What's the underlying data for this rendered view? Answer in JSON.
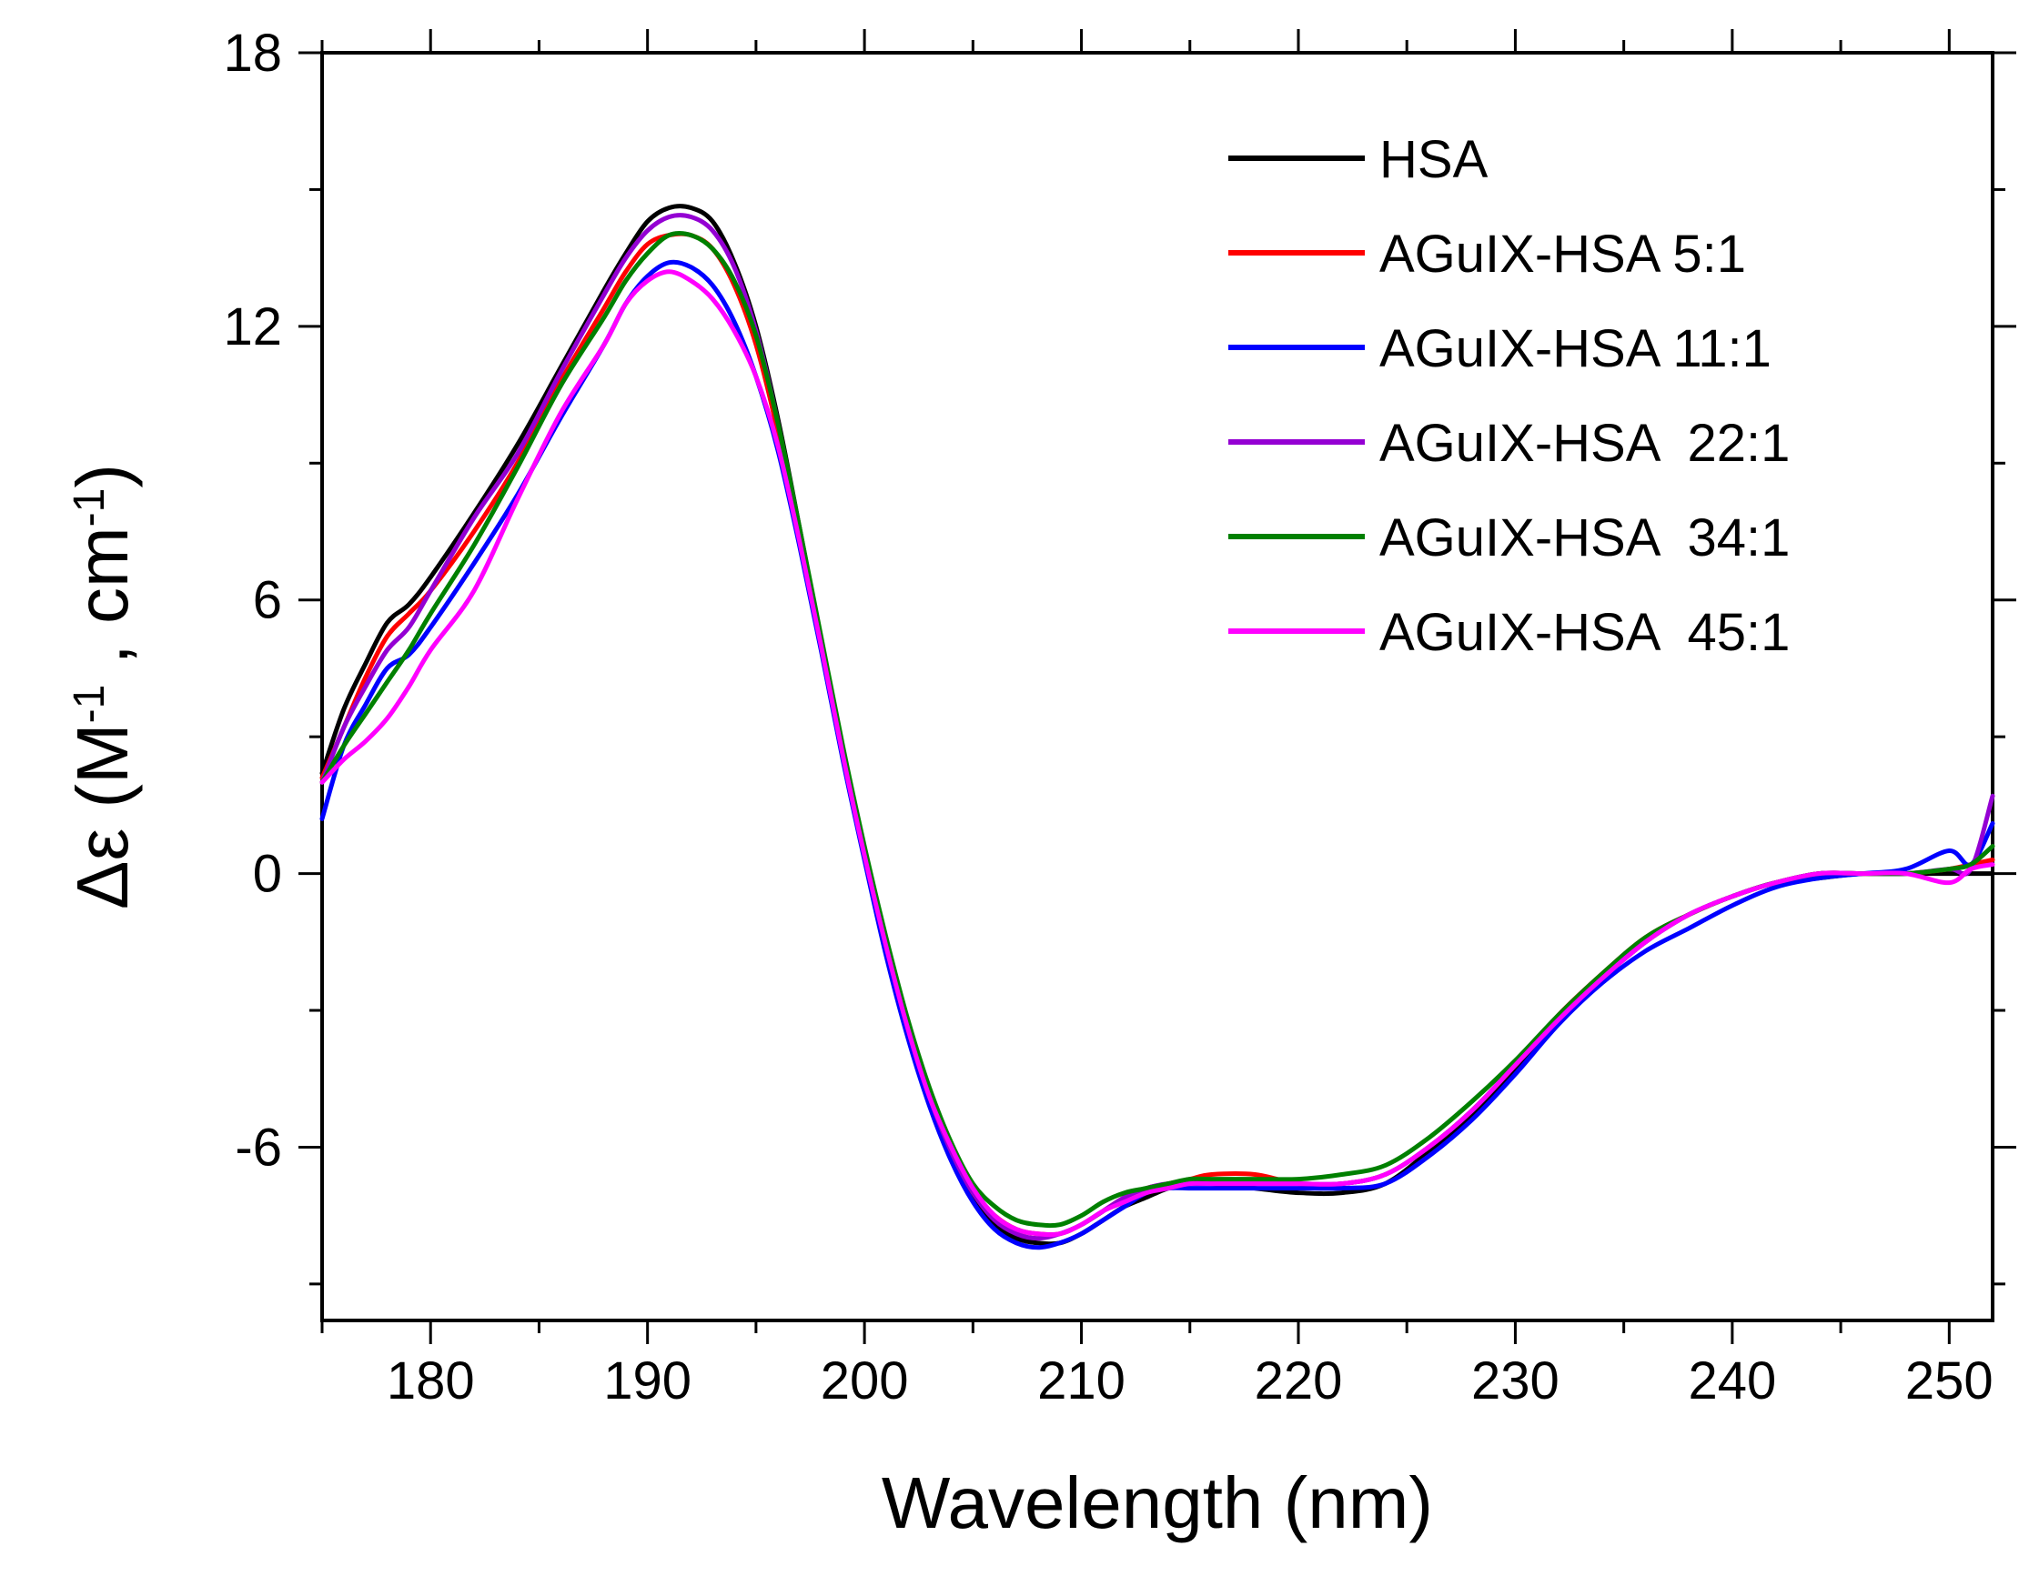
{
  "chart_data": {
    "type": "line",
    "title": "",
    "xlabel": "Wavelength (nm)",
    "ylabel": {
      "prefix": "Δε (M",
      "sup1": "-1",
      "mid": " , cm",
      "sup2": "-1",
      "suffix": ")"
    },
    "xlim": [
      175,
      252
    ],
    "ylim": [
      -9.8,
      18
    ],
    "xticks": [
      180,
      190,
      200,
      210,
      220,
      230,
      240,
      250
    ],
    "yticks": [
      -6,
      0,
      6,
      12,
      18
    ],
    "grid": false,
    "legend_position": "top-right",
    "series": [
      {
        "name": "HSA",
        "color": "#000000",
        "x": [
          175,
          176,
          177,
          178,
          179,
          180,
          182,
          184,
          186,
          188,
          189,
          190,
          191,
          192,
          193,
          194,
          195,
          196,
          197,
          198,
          199,
          200,
          201,
          202,
          203,
          204,
          205,
          206,
          207,
          208,
          209,
          210,
          211,
          212,
          213,
          214,
          215,
          216,
          218,
          220,
          222,
          224,
          226,
          228,
          230,
          232,
          234,
          236,
          238,
          240,
          242,
          244,
          246,
          248,
          250,
          251,
          252
        ],
        "y": [
          2.2,
          3.6,
          4.6,
          5.5,
          5.9,
          6.5,
          7.9,
          9.4,
          11.1,
          12.8,
          13.6,
          14.3,
          14.6,
          14.6,
          14.3,
          13.4,
          12.0,
          10.0,
          7.6,
          5.1,
          2.6,
          0.4,
          -1.7,
          -3.5,
          -5.0,
          -6.2,
          -7.1,
          -7.7,
          -8.0,
          -8.1,
          -8.1,
          -7.9,
          -7.6,
          -7.3,
          -7.1,
          -6.9,
          -6.8,
          -6.8,
          -6.9,
          -7.0,
          -7.0,
          -6.8,
          -6.1,
          -5.3,
          -4.3,
          -3.2,
          -2.3,
          -1.5,
          -0.9,
          -0.5,
          -0.2,
          -0.1,
          0.0,
          0.0,
          0.0,
          0.0,
          0.0
        ]
      },
      {
        "name": "AGuIX-HSA 5:1",
        "color": "#ff0000",
        "x": [
          175,
          176,
          177,
          178,
          179,
          180,
          182,
          184,
          186,
          188,
          189,
          190,
          191,
          192,
          193,
          194,
          195,
          196,
          197,
          198,
          199,
          200,
          201,
          202,
          203,
          204,
          205,
          206,
          207,
          208,
          209,
          210,
          211,
          212,
          213,
          214,
          215,
          216,
          218,
          220,
          222,
          224,
          226,
          228,
          230,
          232,
          234,
          236,
          238,
          240,
          242,
          244,
          246,
          248,
          250,
          251,
          252
        ],
        "y": [
          2.1,
          3.2,
          4.3,
          5.2,
          5.7,
          6.2,
          7.5,
          9.0,
          10.8,
          12.4,
          13.2,
          13.8,
          14.0,
          14.0,
          13.7,
          12.9,
          11.6,
          9.7,
          7.4,
          5.0,
          2.6,
          0.4,
          -1.6,
          -3.4,
          -4.9,
          -6.1,
          -7.0,
          -7.5,
          -7.8,
          -7.9,
          -7.9,
          -7.7,
          -7.4,
          -7.1,
          -6.9,
          -6.8,
          -6.7,
          -6.6,
          -6.6,
          -6.8,
          -6.8,
          -6.6,
          -6.0,
          -5.2,
          -4.2,
          -3.1,
          -2.2,
          -1.4,
          -0.9,
          -0.5,
          -0.2,
          0.0,
          0.0,
          0.0,
          0.1,
          0.2,
          0.3
        ]
      },
      {
        "name": "AGuIX-HSA 11:1",
        "color": "#0000ff",
        "x": [
          175,
          176,
          177,
          178,
          179,
          180,
          182,
          184,
          186,
          188,
          189,
          190,
          191,
          192,
          193,
          194,
          195,
          196,
          197,
          198,
          199,
          200,
          201,
          202,
          203,
          204,
          205,
          206,
          207,
          208,
          209,
          210,
          211,
          212,
          213,
          214,
          215,
          216,
          218,
          220,
          222,
          224,
          226,
          228,
          230,
          232,
          234,
          236,
          238,
          240,
          242,
          244,
          246,
          248,
          250,
          251,
          252
        ],
        "y": [
          1.2,
          2.8,
          3.7,
          4.5,
          4.8,
          5.4,
          6.8,
          8.3,
          10.0,
          11.6,
          12.5,
          13.1,
          13.4,
          13.3,
          12.9,
          12.1,
          10.9,
          9.3,
          7.2,
          4.9,
          2.5,
          0.3,
          -1.8,
          -3.6,
          -5.1,
          -6.3,
          -7.2,
          -7.8,
          -8.1,
          -8.2,
          -8.1,
          -7.9,
          -7.6,
          -7.3,
          -7.0,
          -6.9,
          -6.9,
          -6.9,
          -6.9,
          -6.9,
          -6.9,
          -6.8,
          -6.2,
          -5.4,
          -4.4,
          -3.3,
          -2.4,
          -1.7,
          -1.2,
          -0.7,
          -0.3,
          -0.1,
          0.0,
          0.1,
          0.5,
          0.2,
          1.1
        ]
      },
      {
        "name": "AGuIX-HSA  22:1",
        "color": "#9400d3",
        "x": [
          175,
          176,
          177,
          178,
          179,
          180,
          182,
          184,
          186,
          188,
          189,
          190,
          191,
          192,
          193,
          194,
          195,
          196,
          197,
          198,
          199,
          200,
          201,
          202,
          203,
          204,
          205,
          206,
          207,
          208,
          209,
          210,
          211,
          212,
          213,
          214,
          215,
          216,
          218,
          220,
          222,
          224,
          226,
          228,
          230,
          232,
          234,
          236,
          238,
          240,
          242,
          244,
          246,
          248,
          250,
          251,
          252
        ],
        "y": [
          2.0,
          3.2,
          4.1,
          4.9,
          5.4,
          6.2,
          7.8,
          9.2,
          11.0,
          12.7,
          13.5,
          14.1,
          14.4,
          14.4,
          14.1,
          13.3,
          11.9,
          9.9,
          7.5,
          5.0,
          2.6,
          0.4,
          -1.6,
          -3.4,
          -4.9,
          -6.1,
          -7.0,
          -7.6,
          -7.9,
          -8.0,
          -7.9,
          -7.7,
          -7.4,
          -7.1,
          -6.9,
          -6.8,
          -6.8,
          -6.8,
          -6.8,
          -6.8,
          -6.8,
          -6.6,
          -6.0,
          -5.2,
          -4.2,
          -3.2,
          -2.3,
          -1.5,
          -0.9,
          -0.5,
          -0.2,
          0.0,
          0.0,
          0.0,
          0.1,
          0.1,
          1.7
        ]
      },
      {
        "name": "AGuIX-HSA  34:1",
        "color": "#008000",
        "x": [
          175,
          176,
          177,
          178,
          179,
          180,
          182,
          184,
          186,
          188,
          189,
          190,
          191,
          192,
          193,
          194,
          195,
          196,
          197,
          198,
          199,
          200,
          201,
          202,
          203,
          204,
          205,
          206,
          207,
          208,
          209,
          210,
          211,
          212,
          213,
          214,
          215,
          216,
          218,
          220,
          222,
          224,
          226,
          228,
          230,
          232,
          234,
          236,
          238,
          240,
          242,
          244,
          246,
          248,
          250,
          251,
          252
        ],
        "y": [
          2.0,
          2.8,
          3.5,
          4.2,
          4.9,
          5.7,
          7.2,
          8.9,
          10.7,
          12.2,
          13.0,
          13.6,
          14.0,
          14.0,
          13.7,
          13.0,
          11.8,
          9.9,
          7.6,
          5.2,
          2.8,
          0.6,
          -1.4,
          -3.2,
          -4.7,
          -5.9,
          -6.8,
          -7.3,
          -7.6,
          -7.7,
          -7.7,
          -7.5,
          -7.2,
          -7.0,
          -6.9,
          -6.8,
          -6.7,
          -6.7,
          -6.7,
          -6.7,
          -6.6,
          -6.4,
          -5.8,
          -5.0,
          -4.1,
          -3.1,
          -2.2,
          -1.4,
          -0.9,
          -0.5,
          -0.2,
          0.0,
          0.0,
          0.0,
          0.1,
          0.2,
          0.6
        ]
      },
      {
        "name": "AGuIX-HSA  45:1",
        "color": "#ff00ff",
        "x": [
          175,
          176,
          177,
          178,
          179,
          180,
          182,
          184,
          186,
          188,
          189,
          190,
          191,
          192,
          193,
          194,
          195,
          196,
          197,
          198,
          199,
          200,
          201,
          202,
          203,
          204,
          205,
          206,
          207,
          208,
          209,
          210,
          211,
          212,
          213,
          214,
          215,
          216,
          218,
          220,
          222,
          224,
          226,
          228,
          230,
          232,
          234,
          236,
          238,
          240,
          242,
          244,
          246,
          248,
          250,
          251,
          252
        ],
        "y": [
          2.0,
          2.5,
          2.9,
          3.4,
          4.1,
          4.9,
          6.2,
          8.2,
          10.1,
          11.6,
          12.5,
          13.0,
          13.2,
          13.0,
          12.6,
          11.9,
          10.9,
          9.4,
          7.3,
          5.0,
          2.6,
          0.4,
          -1.6,
          -3.4,
          -4.9,
          -6.0,
          -6.9,
          -7.5,
          -7.8,
          -7.9,
          -7.9,
          -7.7,
          -7.4,
          -7.2,
          -7.0,
          -6.9,
          -6.8,
          -6.8,
          -6.8,
          -6.8,
          -6.8,
          -6.6,
          -6.0,
          -5.2,
          -4.2,
          -3.2,
          -2.3,
          -1.5,
          -0.9,
          -0.5,
          -0.2,
          0.0,
          0.0,
          0.0,
          -0.2,
          0.1,
          0.2
        ]
      }
    ]
  }
}
